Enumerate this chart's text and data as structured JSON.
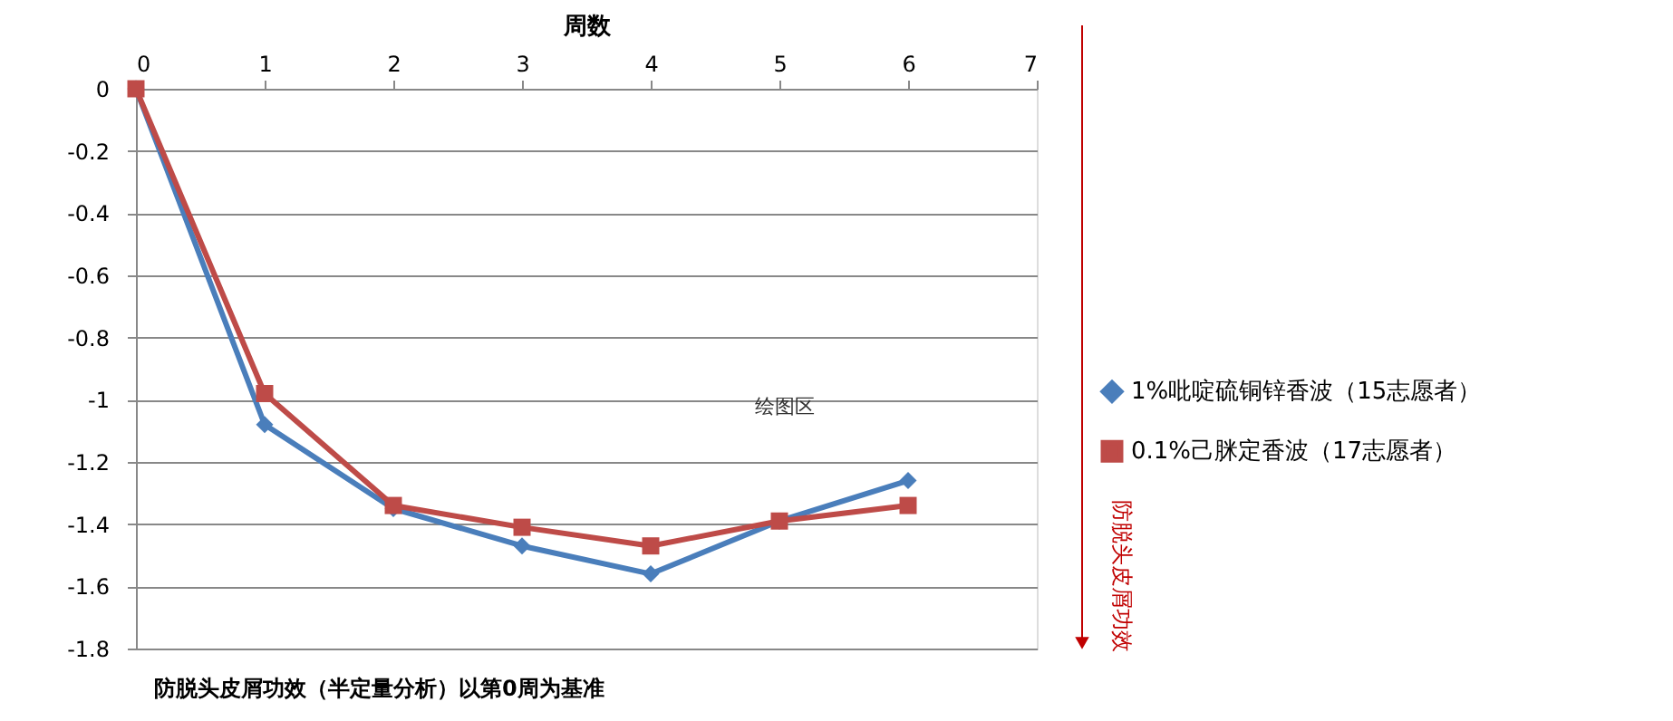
{
  "chart_data": {
    "type": "line",
    "xlabel": "周数",
    "y2label": "防脱头皮屑功效",
    "x": [
      0,
      1,
      2,
      3,
      4,
      5,
      6
    ],
    "series": [
      {
        "name": "1%吡啶硫铜锌香波（15志愿者）",
        "color": "#4a7ebb",
        "marker": "diamond",
        "values": [
          0,
          -1.08,
          -1.35,
          -1.47,
          -1.56,
          -1.39,
          -1.26
        ]
      },
      {
        "name": "0.1%己脒定香波（17志愿者）",
        "color": "#be4b48",
        "marker": "square",
        "values": [
          0,
          -0.98,
          -1.34,
          -1.41,
          -1.47,
          -1.39,
          -1.34
        ]
      }
    ],
    "xlim": [
      0,
      7
    ],
    "xticks": [
      0,
      1,
      2,
      3,
      4,
      5,
      6,
      7
    ],
    "ylim": [
      -1.8,
      0
    ],
    "yticks": [
      0,
      -0.2,
      -0.4,
      -0.6,
      -0.8,
      -1,
      -1.2,
      -1.4,
      -1.6,
      -1.8
    ],
    "grid": "y",
    "legend": "right",
    "line_style": "solid",
    "annotations": [
      "防脱头皮屑功效（半定量分析）以第0周为基准",
      "绘图区"
    ]
  }
}
